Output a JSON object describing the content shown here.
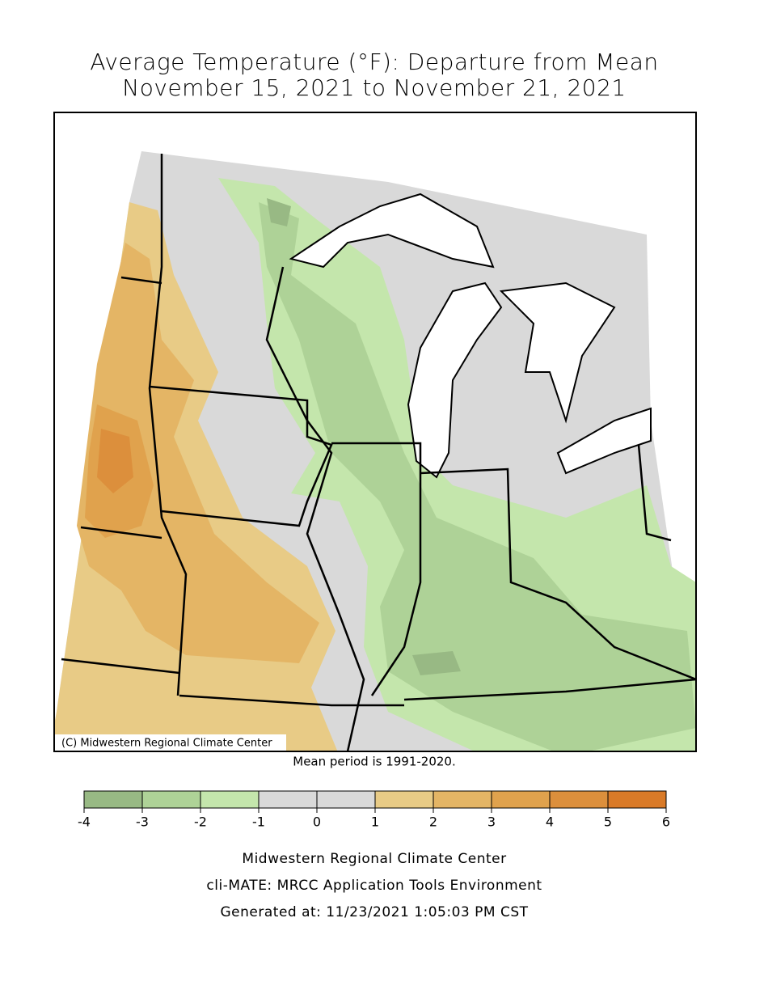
{
  "title": [
    "Average Temperature (°F): Departure from Mean",
    "November 15, 2021 to November 21, 2021"
  ],
  "map": {
    "credit": "(C) Midwestern Regional Climate Center",
    "note": "Mean period is 1991-2020."
  },
  "legend": {
    "ticks": [
      -4,
      -3,
      -2,
      -1,
      0,
      1,
      2,
      3,
      4,
      5,
      6
    ],
    "colors": [
      "#98b984",
      "#aed297",
      "#c4e6ac",
      "#d9d9d9",
      "#d9d9d9",
      "#e8cb86",
      "#e4b565",
      "#e0a24d",
      "#dc8f3c",
      "#d97a28"
    ]
  },
  "footer": [
    "Midwestern Regional Climate Center",
    "cli-MATE: MRCC Application Tools Environment",
    "Generated at: 11/23/2021 1:05:03 PM CST"
  ]
}
